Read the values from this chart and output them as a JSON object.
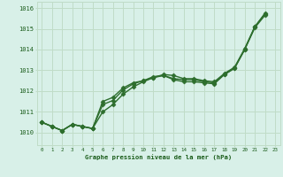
{
  "background_color": "#d8f0e8",
  "grid_color": "#c0dcc8",
  "line_color": "#2d6e2d",
  "text_color": "#1a5c1a",
  "xlabel": "Graphe pression niveau de la mer (hPa)",
  "ylim": [
    1009.4,
    1016.3
  ],
  "xlim": [
    -0.5,
    23.5
  ],
  "yticks": [
    1010,
    1011,
    1012,
    1013,
    1014,
    1015,
    1016
  ],
  "xticks": [
    0,
    1,
    2,
    3,
    4,
    5,
    6,
    7,
    8,
    9,
    10,
    11,
    12,
    13,
    14,
    15,
    16,
    17,
    18,
    19,
    20,
    21,
    22,
    23
  ],
  "series1_x": [
    0,
    1,
    2,
    3,
    4,
    5,
    6,
    7,
    8,
    9,
    10,
    11,
    12,
    13,
    14,
    15,
    16,
    17,
    18,
    19,
    20,
    21,
    22
  ],
  "series1_y": [
    1010.5,
    1010.3,
    1010.1,
    1010.4,
    1010.3,
    1010.2,
    1011.0,
    1011.35,
    1011.85,
    1012.2,
    1012.45,
    1012.65,
    1012.75,
    1012.55,
    1012.45,
    1012.45,
    1012.4,
    1012.35,
    1012.8,
    1013.1,
    1014.0,
    1015.1,
    1015.75
  ],
  "series2_x": [
    0,
    1,
    2,
    3,
    4,
    5,
    6,
    7,
    8,
    9,
    10,
    11,
    12,
    13,
    14,
    15,
    16,
    17,
    18,
    19,
    20,
    21,
    22
  ],
  "series2_y": [
    1010.5,
    1010.3,
    1010.1,
    1010.4,
    1010.3,
    1010.2,
    1011.5,
    1011.7,
    1012.15,
    1012.4,
    1012.5,
    1012.65,
    1012.8,
    1012.75,
    1012.6,
    1012.6,
    1012.5,
    1012.45,
    1012.85,
    1013.15,
    1014.05,
    1015.1,
    1015.7
  ],
  "series3_x": [
    0,
    1,
    2,
    3,
    4,
    5,
    6,
    7,
    8,
    9,
    10,
    11,
    12,
    13,
    14,
    15,
    16,
    17,
    18,
    19,
    20,
    21,
    22
  ],
  "series3_y": [
    1010.5,
    1010.3,
    1010.1,
    1010.4,
    1010.3,
    1010.2,
    1011.35,
    1011.55,
    1012.05,
    1012.35,
    1012.5,
    1012.7,
    1012.75,
    1012.6,
    1012.55,
    1012.55,
    1012.45,
    1012.4,
    1012.8,
    1013.1,
    1014.0,
    1015.05,
    1015.65
  ],
  "markersize": 2.5,
  "linewidth": 1.0
}
